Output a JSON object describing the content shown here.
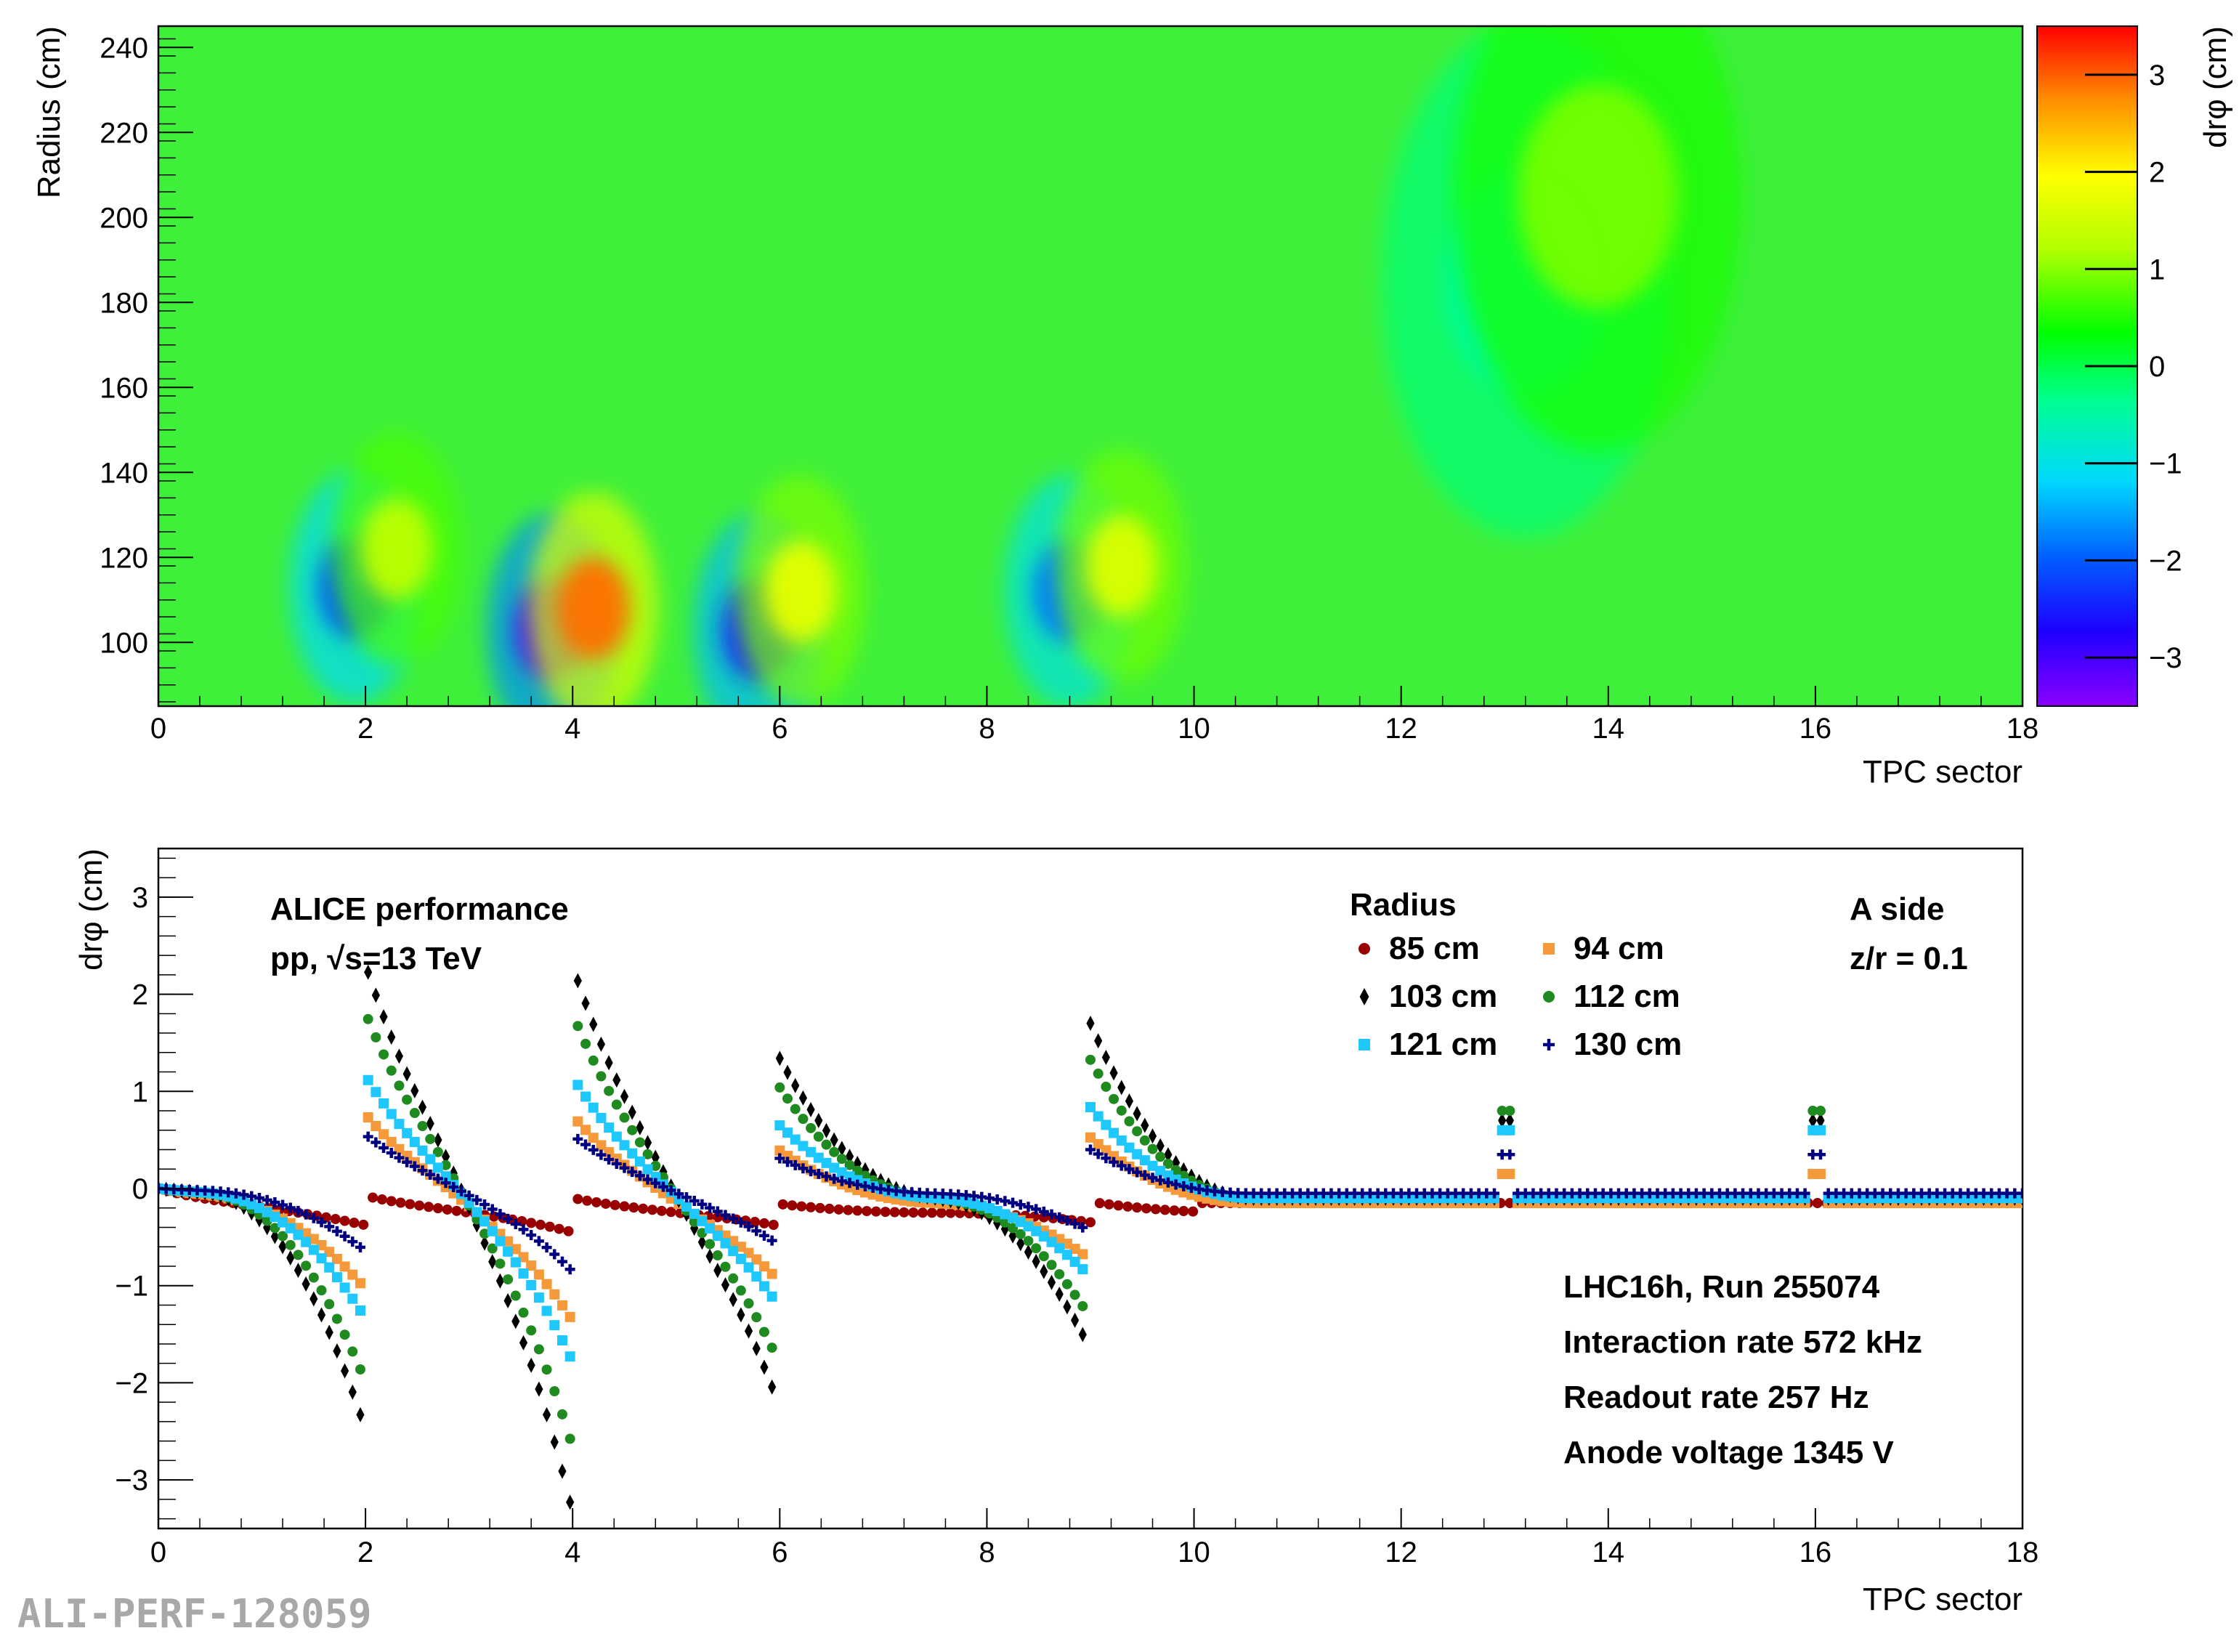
{
  "watermark": "ALI-PERF-128059",
  "chart_data": [
    {
      "type": "heatmap",
      "xlabel": "TPC sector",
      "ylabel": "Radius (cm)",
      "xlim": [
        0,
        18
      ],
      "ylim": [
        85,
        245
      ],
      "x_ticks": [
        "0",
        "2",
        "4",
        "6",
        "8",
        "10",
        "12",
        "14",
        "16",
        "18"
      ],
      "y_ticks": [
        "100",
        "120",
        "140",
        "160",
        "180",
        "200",
        "220",
        "240"
      ],
      "colorbar": {
        "label": "drφ (cm)",
        "range": [
          -3.5,
          3.5
        ],
        "ticks": [
          "−3",
          "−2",
          "−1",
          "0",
          "1",
          "2",
          "3"
        ],
        "palette": [
          "#8a00ff",
          "#1e00ff",
          "#0060ff",
          "#00d8ff",
          "#00ff90",
          "#00ff00",
          "#b0ff00",
          "#ffff00",
          "#ff9000",
          "#ff0000"
        ]
      },
      "background_value": 0.4,
      "features": [
        {
          "sector": 1.9,
          "radius": 113,
          "value": -2.1
        },
        {
          "sector": 2.3,
          "radius": 122,
          "value": 1.3
        },
        {
          "sector": 3.8,
          "radius": 103,
          "value": -3.0
        },
        {
          "sector": 4.2,
          "radius": 108,
          "value": 2.9
        },
        {
          "sector": 5.8,
          "radius": 103,
          "value": -2.5
        },
        {
          "sector": 6.2,
          "radius": 112,
          "value": 1.7
        },
        {
          "sector": 8.8,
          "radius": 112,
          "value": -1.8
        },
        {
          "sector": 9.3,
          "radius": 118,
          "value": 1.6
        },
        {
          "sector": 13.2,
          "radius": 185,
          "value": -0.5
        },
        {
          "sector": 13.9,
          "radius": 205,
          "value": 0.9
        }
      ]
    },
    {
      "type": "scatter",
      "xlabel": "TPC sector",
      "ylabel": "drφ (cm)",
      "xlim": [
        0,
        18
      ],
      "ylim": [
        -3.5,
        3.5
      ],
      "x_ticks": [
        "0",
        "2",
        "4",
        "6",
        "8",
        "10",
        "12",
        "14",
        "16",
        "18"
      ],
      "y_ticks": [
        "−3",
        "−2",
        "−1",
        "0",
        "1",
        "2",
        "3"
      ],
      "annotation_left": [
        "ALICE performance",
        "pp, √s=13 TeV"
      ],
      "legend_title": "Radius",
      "annotation_right": [
        "A side",
        "z/r = 0.1"
      ],
      "info_lines": [
        "LHC16h, Run 255074",
        "Interaction rate 572 kHz",
        "Readout rate 257 Hz",
        "Anode voltage 1345 V"
      ],
      "series": [
        {
          "name": "85 cm",
          "color": "#990000",
          "marker": "circle",
          "amp": 0.15,
          "spike": 0.05,
          "base": -0.25
        },
        {
          "name": "94 cm",
          "color": "#f5993a",
          "marker": "square",
          "amp": 0.9,
          "spike": 0.3,
          "base": -0.15
        },
        {
          "name": "103 cm",
          "color": "#000000",
          "marker": "diamond",
          "amp": 2.4,
          "spike": 0.8,
          "base": -0.1
        },
        {
          "name": "112 cm",
          "color": "#1f8a1f",
          "marker": "circle",
          "amp": 1.9,
          "spike": 0.9,
          "base": -0.1
        },
        {
          "name": "121 cm",
          "color": "#1ec8ff",
          "marker": "square",
          "amp": 1.25,
          "spike": 0.7,
          "base": -0.1
        },
        {
          "name": "130 cm",
          "color": "#000080",
          "marker": "cross",
          "amp": 0.6,
          "spike": 0.4,
          "base": -0.05
        }
      ],
      "sector_features": [
        {
          "sector": 2,
          "neg": 1.0,
          "pos": 1.0
        },
        {
          "sector": 4,
          "neg": 1.35,
          "pos": 1.0
        },
        {
          "sector": 6,
          "neg": 0.9,
          "pos": 0.6
        },
        {
          "sector": 9,
          "neg": 0.65,
          "pos": 0.75
        }
      ]
    }
  ]
}
